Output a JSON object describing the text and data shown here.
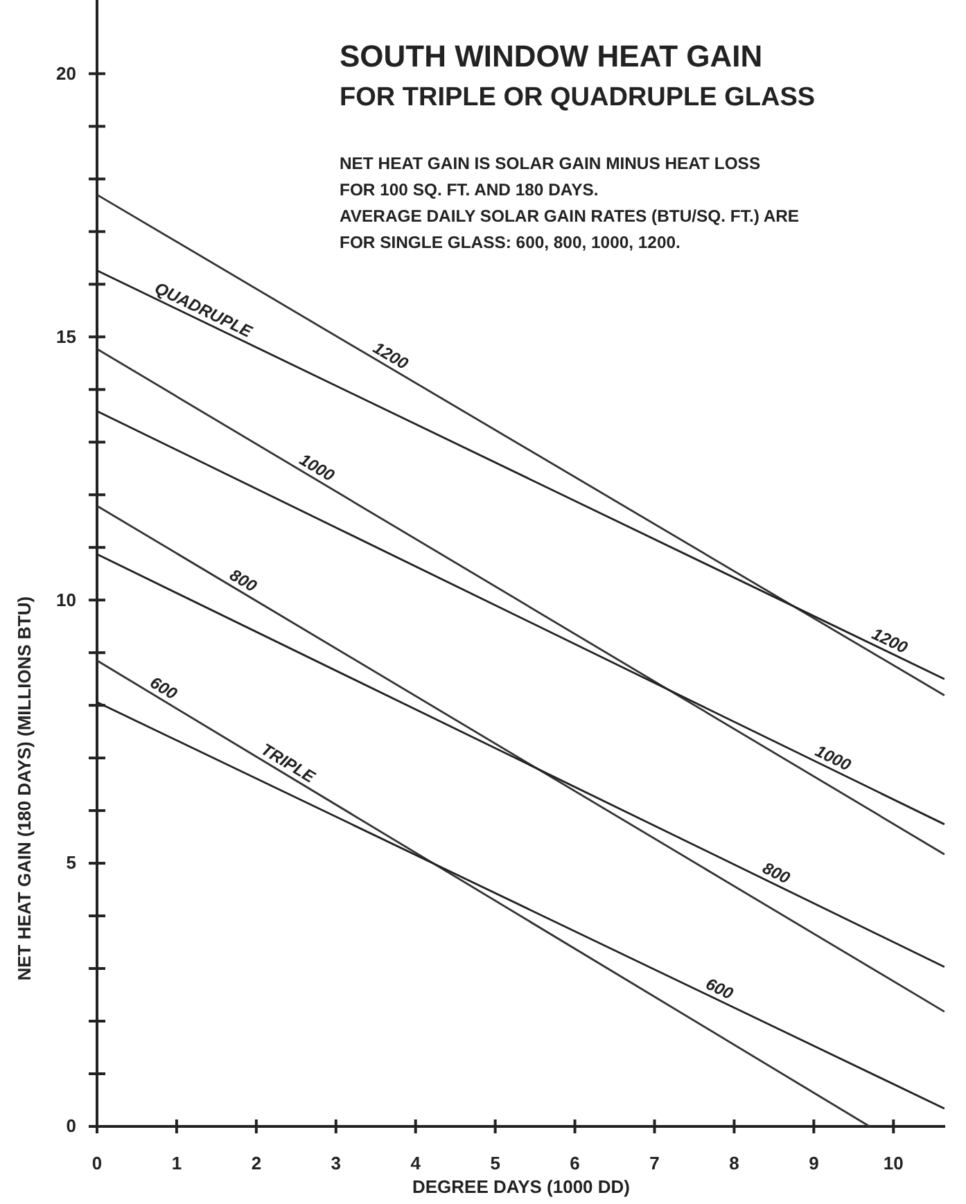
{
  "chart_data": {
    "type": "line",
    "title": "SOUTH WINDOW HEAT GAIN\nFOR TRIPLE OR QUADRUPLE GLASS",
    "subtitle": "NET HEAT GAIN IS SOLAR GAIN MINUS HEAT LOSS\nFOR 100 SQ. FT. AND 180 DAYS.\nAVERAGE DAILY SOLAR GAIN RATES (BTU/SQ. FT.) ARE\nFOR SINGLE GLASS:  600, 800, 1000, 1200.",
    "xlabel": "DEGREE DAYS (1000 DD)",
    "ylabel": "NET  HEAT GAIN (180 DAYS) (MILLIONS BTU)",
    "xlim": [
      0,
      10.65
    ],
    "xticks": [
      0,
      1,
      2,
      3,
      4,
      5,
      6,
      7,
      8,
      9,
      10
    ],
    "ylim": [
      0,
      21.4
    ],
    "yticks": [
      0,
      {
        "value": 1,
        "label": null
      },
      {
        "value": 2,
        "label": null
      },
      {
        "value": 3,
        "label": null
      },
      {
        "value": 4,
        "label": null
      },
      5,
      {
        "value": 6,
        "label": null
      },
      {
        "value": 7,
        "label": null
      },
      {
        "value": 8,
        "label": null
      },
      {
        "value": 9,
        "label": null
      },
      10,
      {
        "value": 11,
        "label": null
      },
      {
        "value": 12,
        "label": null
      },
      {
        "value": 13,
        "label": null
      },
      {
        "value": 14,
        "label": null
      },
      15,
      {
        "value": 16,
        "label": null
      },
      {
        "value": 17,
        "label": null
      },
      {
        "value": 18,
        "label": null
      },
      {
        "value": 19,
        "label": null
      },
      20
    ],
    "grid": false,
    "line_style": "solid",
    "marker": "none",
    "series": [
      {
        "name": "1200",
        "color": "#333333",
        "x": [
          0,
          10.64
        ],
        "values": [
          17.7,
          8.19
        ]
      },
      {
        "name": "1200",
        "color": "#222222",
        "x": [
          0,
          10.64
        ],
        "values": [
          16.26,
          8.5
        ]
      },
      {
        "name": "1000",
        "color": "#333333",
        "x": [
          0,
          10.64
        ],
        "values": [
          14.77,
          5.17
        ]
      },
      {
        "name": "1000",
        "color": "#222222",
        "x": [
          0,
          10.64
        ],
        "values": [
          13.59,
          5.74
        ]
      },
      {
        "name": "800",
        "color": "#333333",
        "x": [
          0,
          10.64
        ],
        "values": [
          11.79,
          2.18
        ]
      },
      {
        "name": "800",
        "color": "#222222",
        "x": [
          0,
          10.64
        ],
        "values": [
          10.87,
          3.03
        ]
      },
      {
        "name": "600",
        "color": "#333333",
        "x": [
          0,
          9.7
        ],
        "values": [
          8.85,
          0
        ]
      },
      {
        "name": "600",
        "color": "#222222",
        "x": [
          0,
          10.64
        ],
        "values": [
          8.06,
          0.34
        ]
      }
    ],
    "annotations": [
      "QUADRUPLE",
      "TRIPLE"
    ]
  }
}
